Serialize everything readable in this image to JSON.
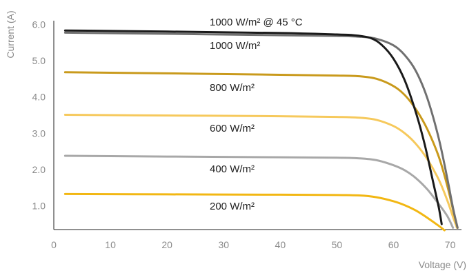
{
  "chart_data": {
    "type": "line",
    "xlabel": "Voltage (V)",
    "ylabel": "Current (A)",
    "xlim": [
      0,
      72
    ],
    "ylim": [
      0.35,
      6.1
    ],
    "x_ticks": [
      "0",
      "10",
      "20",
      "30",
      "40",
      "50",
      "60",
      "70"
    ],
    "y_ticks": [
      "1.0",
      "2.0",
      "3.0",
      "4.0",
      "5.0",
      "6.0"
    ],
    "grid": false,
    "series": [
      {
        "name": "1000 W/m² @ 45 °C",
        "color": "#1a1a1a",
        "points": [
          [
            2,
            5.83
          ],
          [
            20,
            5.8
          ],
          [
            40,
            5.76
          ],
          [
            50,
            5.72
          ],
          [
            53,
            5.7
          ],
          [
            56,
            5.62
          ],
          [
            58,
            5.42
          ],
          [
            60,
            5.05
          ],
          [
            62,
            4.45
          ],
          [
            64,
            3.55
          ],
          [
            65.5,
            2.7
          ],
          [
            67,
            1.65
          ],
          [
            68,
            0.95
          ],
          [
            68.5,
            0.5
          ]
        ]
      },
      {
        "name": "1000 W/m²",
        "color": "#707070",
        "points": [
          [
            2,
            5.77
          ],
          [
            20,
            5.74
          ],
          [
            40,
            5.7
          ],
          [
            50,
            5.68
          ],
          [
            54,
            5.66
          ],
          [
            57,
            5.6
          ],
          [
            60,
            5.42
          ],
          [
            62,
            5.15
          ],
          [
            64,
            4.7
          ],
          [
            66,
            3.95
          ],
          [
            68,
            2.85
          ],
          [
            69.5,
            1.75
          ],
          [
            70.5,
            0.95
          ],
          [
            71.3,
            0.4
          ]
        ]
      },
      {
        "name": "800 W/m²",
        "color": "#c99a1c",
        "points": [
          [
            2,
            4.68
          ],
          [
            20,
            4.65
          ],
          [
            40,
            4.61
          ],
          [
            50,
            4.59
          ],
          [
            54,
            4.57
          ],
          [
            57,
            4.5
          ],
          [
            60,
            4.3
          ],
          [
            62,
            4.05
          ],
          [
            64,
            3.65
          ],
          [
            66,
            3.1
          ],
          [
            68,
            2.35
          ],
          [
            69.5,
            1.55
          ],
          [
            70.5,
            0.9
          ],
          [
            71.3,
            0.4
          ]
        ]
      },
      {
        "name": "600 W/m²",
        "color": "#f6c95c",
        "points": [
          [
            2,
            3.51
          ],
          [
            20,
            3.49
          ],
          [
            40,
            3.47
          ],
          [
            50,
            3.45
          ],
          [
            54,
            3.43
          ],
          [
            57,
            3.37
          ],
          [
            60,
            3.2
          ],
          [
            62,
            3.0
          ],
          [
            64,
            2.7
          ],
          [
            66,
            2.28
          ],
          [
            68,
            1.72
          ],
          [
            69.5,
            1.15
          ],
          [
            70.5,
            0.7
          ],
          [
            71.2,
            0.4
          ]
        ]
      },
      {
        "name": "400 W/m²",
        "color": "#a8a8a8",
        "points": [
          [
            2,
            2.38
          ],
          [
            20,
            2.36
          ],
          [
            40,
            2.34
          ],
          [
            50,
            2.33
          ],
          [
            54,
            2.31
          ],
          [
            57,
            2.26
          ],
          [
            60,
            2.12
          ],
          [
            62,
            1.98
          ],
          [
            64,
            1.76
          ],
          [
            66,
            1.45
          ],
          [
            68,
            1.05
          ],
          [
            69.5,
            0.72
          ],
          [
            70.5,
            0.4
          ]
        ]
      },
      {
        "name": "200 W/m²",
        "color": "#f2b713",
        "points": [
          [
            2,
            1.33
          ],
          [
            20,
            1.32
          ],
          [
            40,
            1.31
          ],
          [
            50,
            1.3
          ],
          [
            54,
            1.29
          ],
          [
            57,
            1.24
          ],
          [
            60,
            1.13
          ],
          [
            62,
            1.02
          ],
          [
            64,
            0.87
          ],
          [
            66,
            0.67
          ],
          [
            68,
            0.45
          ],
          [
            69,
            0.33
          ]
        ]
      }
    ]
  }
}
